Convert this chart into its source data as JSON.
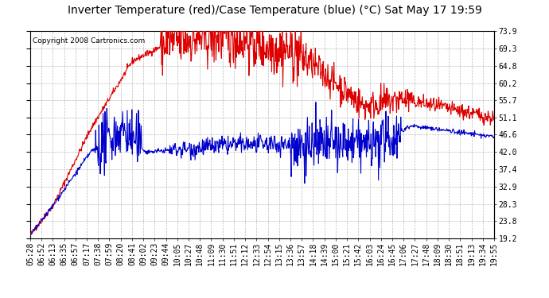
{
  "title": "Inverter Temperature (red)/Case Temperature (blue) (°C) Sat May 17 19:59",
  "copyright": "Copyright 2008 Cartronics.com",
  "yticks": [
    19.2,
    23.8,
    28.3,
    32.9,
    37.4,
    42.0,
    46.6,
    51.1,
    55.7,
    60.2,
    64.8,
    69.3,
    73.9
  ],
  "ymin": 19.2,
  "ymax": 73.9,
  "bg_color": "#ffffff",
  "plot_bg_color": "#ffffff",
  "grid_color": "#aaaaaa",
  "red_color": "#dd0000",
  "blue_color": "#0000cc",
  "title_fontsize": 10,
  "copyright_fontsize": 6.5,
  "tick_fontsize": 7,
  "xtick_labels": [
    "05:28",
    "06:52",
    "06:13",
    "06:35",
    "06:57",
    "07:17",
    "07:38",
    "07:59",
    "08:20",
    "08:41",
    "09:02",
    "09:23",
    "09:44",
    "10:05",
    "10:27",
    "10:48",
    "11:09",
    "11:30",
    "11:51",
    "12:12",
    "12:33",
    "12:54",
    "13:15",
    "13:36",
    "13:57",
    "14:18",
    "14:39",
    "15:00",
    "15:21",
    "15:42",
    "16:03",
    "16:24",
    "16:45",
    "17:06",
    "17:27",
    "17:48",
    "18:09",
    "18:30",
    "18:51",
    "19:13",
    "19:34",
    "19:55"
  ]
}
